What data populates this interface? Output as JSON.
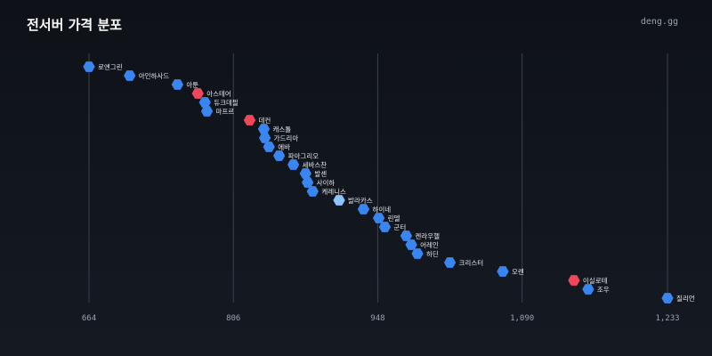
{
  "header": {
    "title": "전서버 가격 분포",
    "brand": "deng.gg"
  },
  "colors": {
    "default": "#3a86f0",
    "high": "#f0485a",
    "highlight": "#8fc3ff",
    "grid": "#3a424d"
  },
  "chart_data": {
    "type": "scatter",
    "title": "전서버 가격 분포",
    "xlabel": "",
    "ylabel": "",
    "xlim": [
      664,
      1233
    ],
    "xticks": [
      {
        "value": 664,
        "label": "664"
      },
      {
        "value": 806,
        "label": "806"
      },
      {
        "value": 948,
        "label": "948"
      },
      {
        "value": 1090,
        "label": "1,090"
      },
      {
        "value": 1233,
        "label": "1,233"
      }
    ],
    "grid": true,
    "legend": "none",
    "points": [
      {
        "label": "로엔그린",
        "value": 664,
        "status": "default"
      },
      {
        "label": "아인하사드",
        "value": 704,
        "status": "default"
      },
      {
        "label": "아툰",
        "value": 751,
        "status": "default"
      },
      {
        "label": "아스테어",
        "value": 771,
        "status": "high"
      },
      {
        "label": "듀크데필",
        "value": 778,
        "status": "default"
      },
      {
        "label": "마프르",
        "value": 780,
        "status": "default"
      },
      {
        "label": "데컨",
        "value": 822,
        "status": "high"
      },
      {
        "label": "캐스톨",
        "value": 836,
        "status": "default"
      },
      {
        "label": "가드리아",
        "value": 837,
        "status": "default"
      },
      {
        "label": "에바",
        "value": 841,
        "status": "default"
      },
      {
        "label": "파아그리오",
        "value": 851,
        "status": "default"
      },
      {
        "label": "세바스찬",
        "value": 865,
        "status": "default"
      },
      {
        "label": "발센",
        "value": 877,
        "status": "default"
      },
      {
        "label": "사이하",
        "value": 879,
        "status": "default"
      },
      {
        "label": "케레니스",
        "value": 884,
        "status": "default"
      },
      {
        "label": "발라카스",
        "value": 910,
        "status": "highlight"
      },
      {
        "label": "하이네",
        "value": 934,
        "status": "default"
      },
      {
        "label": "린델",
        "value": 949,
        "status": "default"
      },
      {
        "label": "군터",
        "value": 955,
        "status": "default"
      },
      {
        "label": "켄라우헬",
        "value": 976,
        "status": "default"
      },
      {
        "label": "어레인",
        "value": 981,
        "status": "default"
      },
      {
        "label": "하딘",
        "value": 987,
        "status": "default"
      },
      {
        "label": "크리스터",
        "value": 1019,
        "status": "default"
      },
      {
        "label": "오렌",
        "value": 1071,
        "status": "default"
      },
      {
        "label": "이실로테",
        "value": 1141,
        "status": "high"
      },
      {
        "label": "조우",
        "value": 1155,
        "status": "default"
      },
      {
        "label": "질리언",
        "value": 1233,
        "status": "default"
      }
    ]
  }
}
